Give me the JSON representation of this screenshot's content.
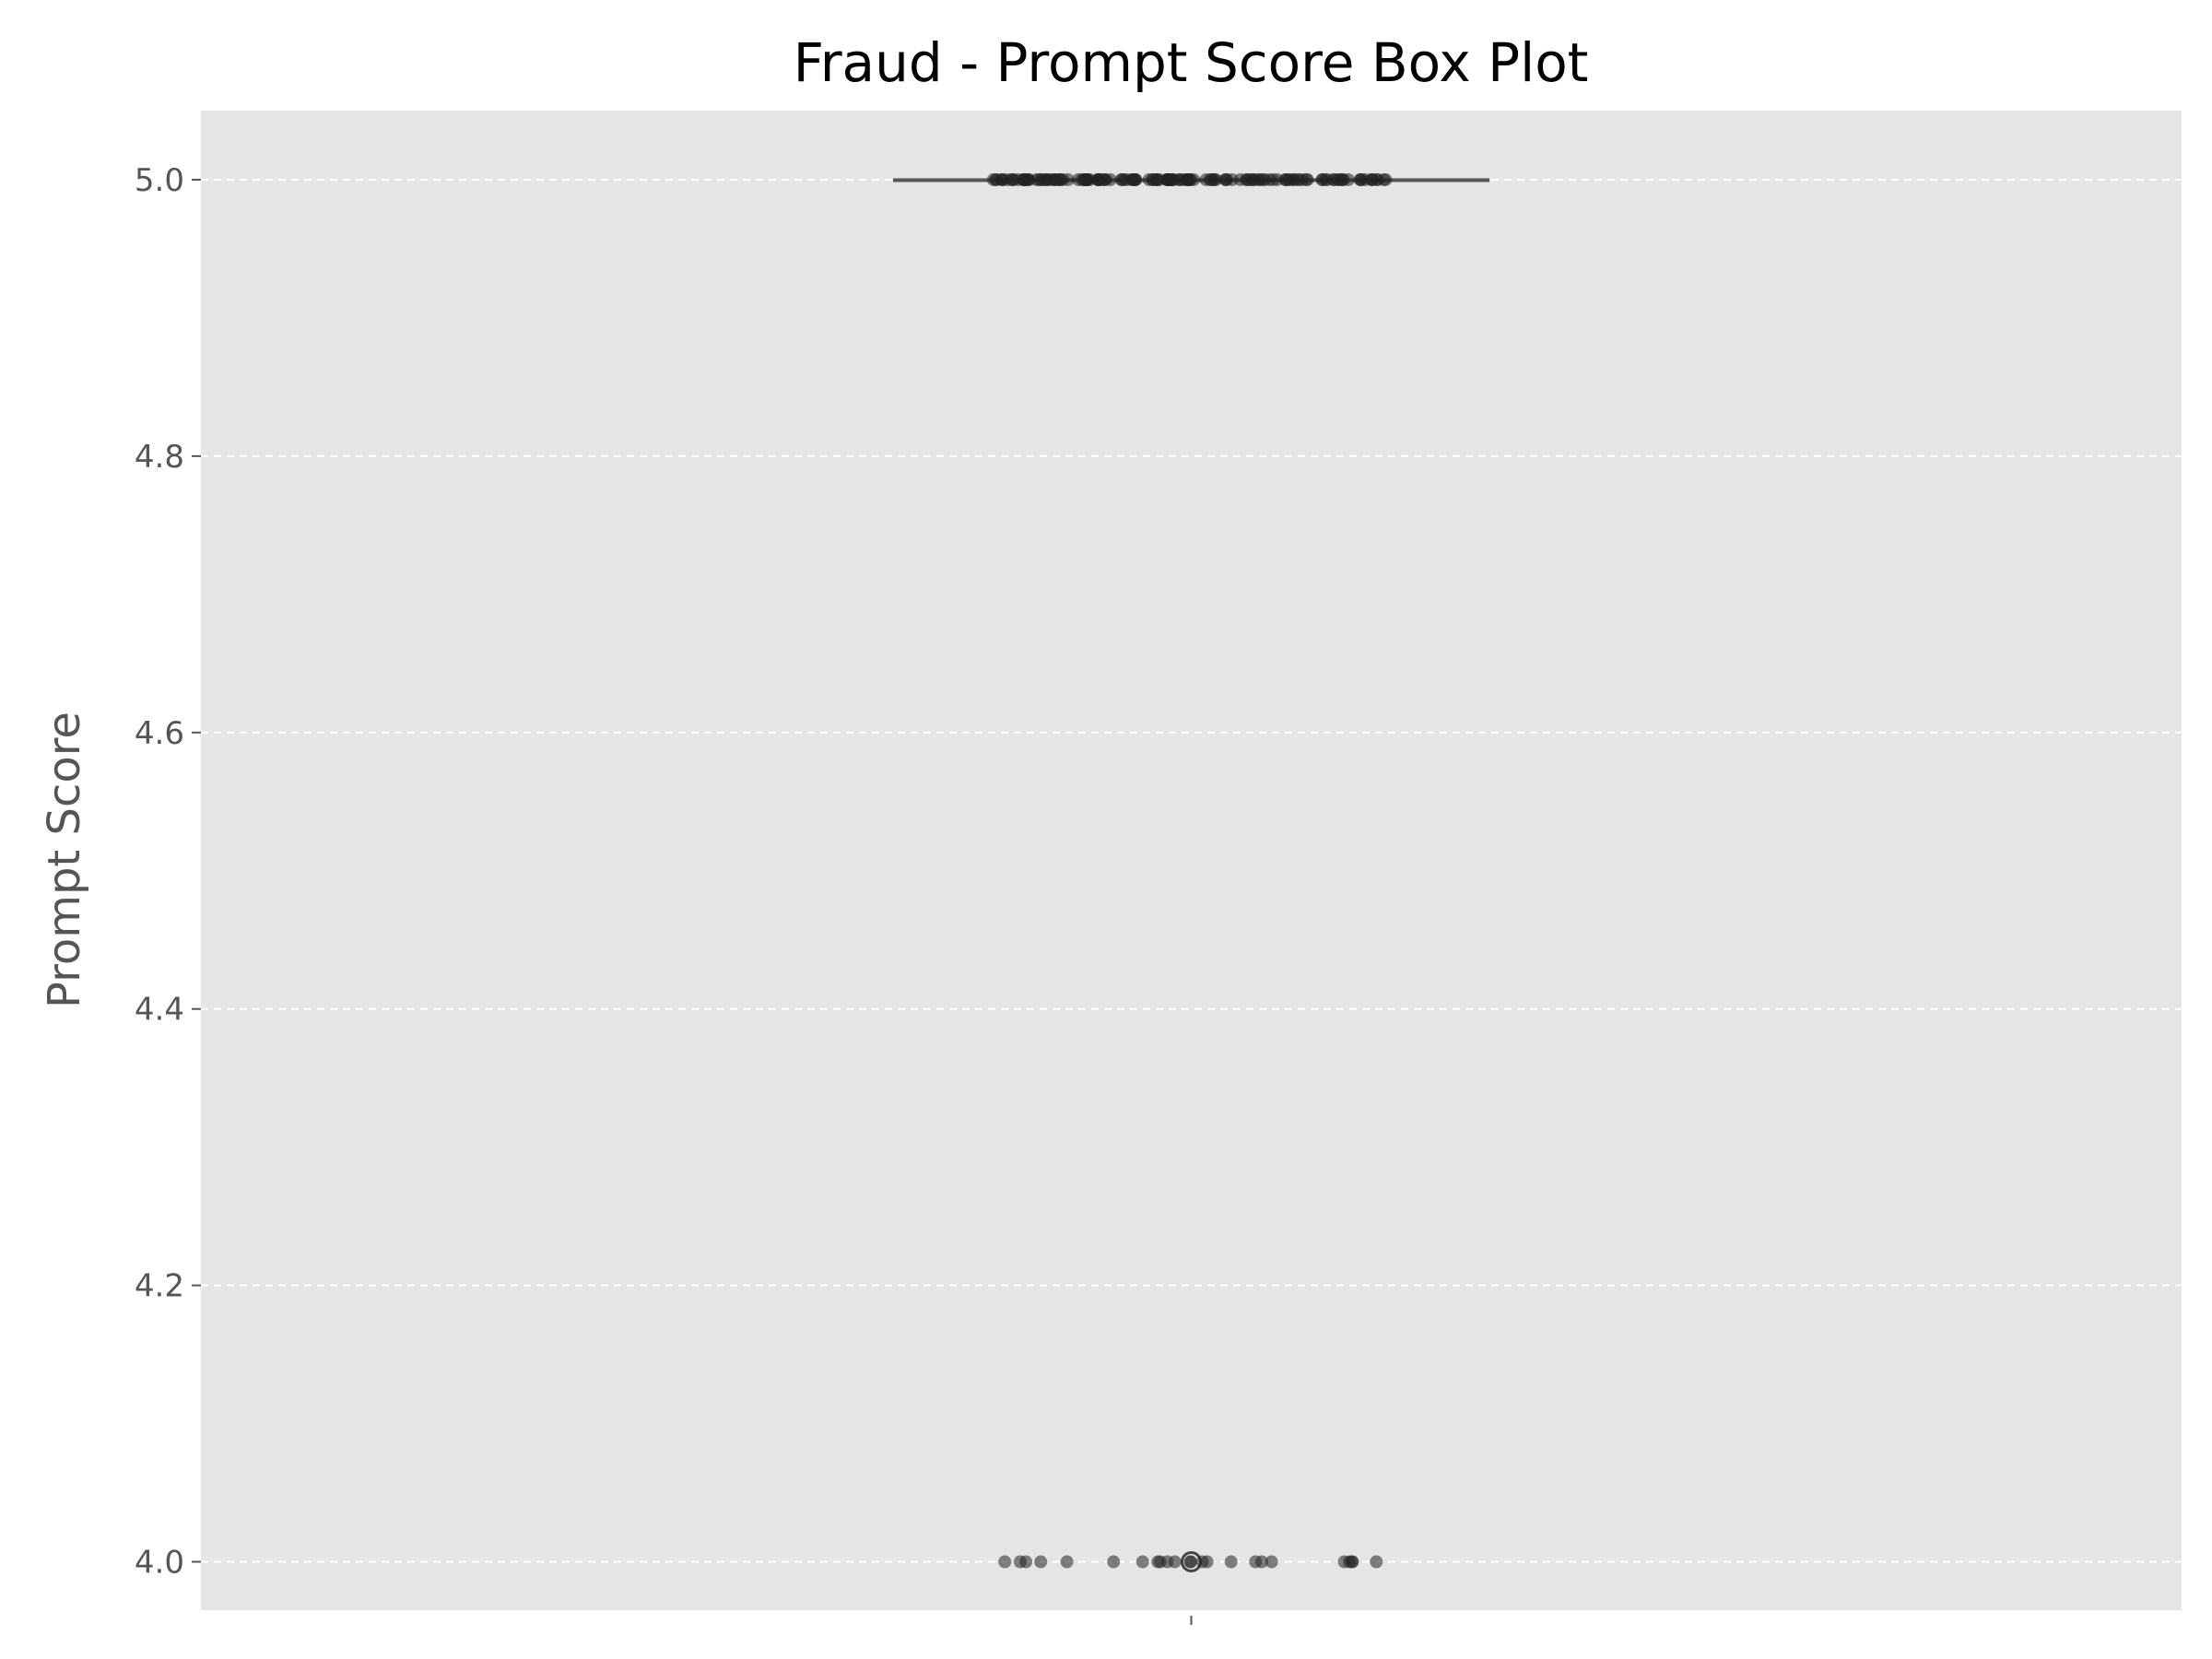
{
  "chart_data": {
    "type": "box",
    "title": "Fraud - Prompt Score Box Plot",
    "xlabel": "",
    "ylabel": "Prompt Score",
    "ylim": [
      3.965,
      5.05
    ],
    "yticks": [
      4.0,
      4.2,
      4.4,
      4.6,
      4.8,
      5.0
    ],
    "ytick_labels": [
      "4.0",
      "4.2",
      "4.4",
      "4.6",
      "4.8",
      "5.0"
    ],
    "grid": true,
    "box": {
      "q1": 5.0,
      "median": 5.0,
      "q3": 5.0,
      "whisker_low": 5.0,
      "whisker_high": 5.0,
      "outliers": [
        4.0
      ]
    },
    "jitter_points": [
      {
        "y": 5.0,
        "count": 150
      },
      {
        "y": 4.0,
        "count": 24
      }
    ],
    "colors": {
      "plot_background": "#e5e5e5",
      "grid": "#ffffff",
      "points": "#222222",
      "box": "#555555"
    }
  }
}
